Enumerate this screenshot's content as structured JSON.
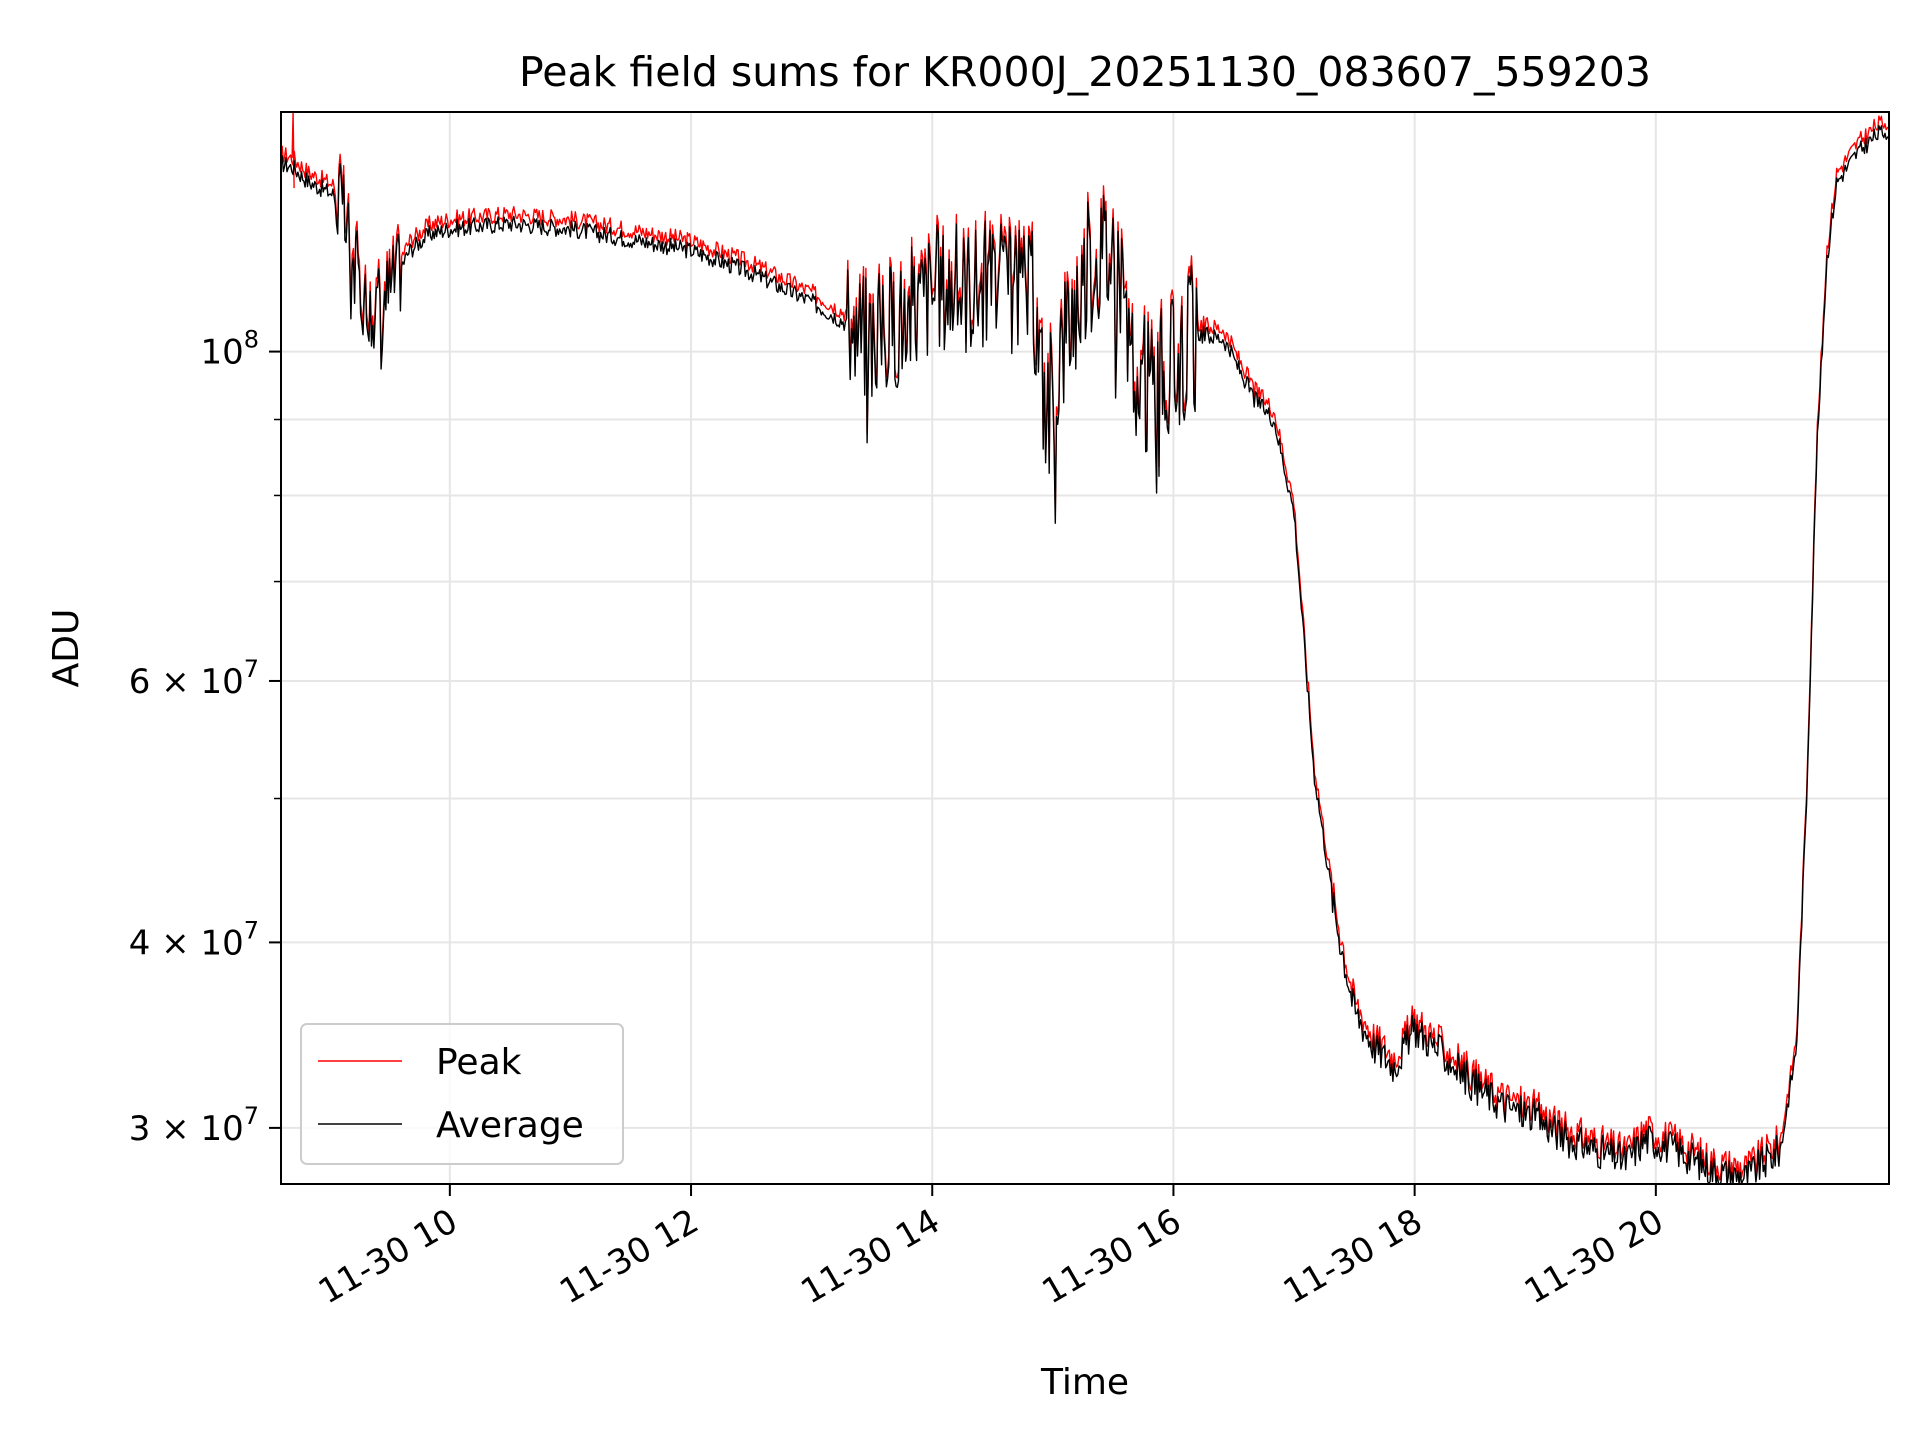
{
  "chart_data": {
    "type": "line",
    "title": "Peak field sums for KR000J_20251130_083607_559203",
    "xlabel": "Time",
    "ylabel": "ADU",
    "yscale": "log",
    "xlim": [
      "2025-11-30 08:36",
      "2025-11-30 21:56"
    ],
    "ylim": [
      27500000,
      145000000
    ],
    "grid": true,
    "legend_position": "lower-left",
    "x_ticks": [
      {
        "value": "2025-11-30 10:00",
        "label": "11-30 10"
      },
      {
        "value": "2025-11-30 12:00",
        "label": "11-30 12"
      },
      {
        "value": "2025-11-30 14:00",
        "label": "11-30 14"
      },
      {
        "value": "2025-11-30 16:00",
        "label": "11-30 16"
      },
      {
        "value": "2025-11-30 18:00",
        "label": "11-30 18"
      },
      {
        "value": "2025-11-30 20:00",
        "label": "11-30 20"
      }
    ],
    "y_ticks": [
      {
        "value": 30000000,
        "label": "3 × 10",
        "exp": "7"
      },
      {
        "value": 40000000,
        "label": "4 × 10",
        "exp": "7"
      },
      {
        "value": 60000000,
        "label": "6 × 10",
        "exp": "7"
      },
      {
        "value": 100000000,
        "label": "10",
        "exp": "8"
      }
    ],
    "y_minor_ticks": [
      50000000,
      70000000,
      80000000,
      90000000
    ],
    "series": [
      {
        "name": "Peak",
        "color": "#ff0000",
        "spike": {
          "x": "2025-11-30 08:42",
          "y": 145000000
        },
        "offset_factor": 1.015
      },
      {
        "name": "Average",
        "color": "#000000",
        "x": [
          "2025-11-30 08:36",
          "2025-11-30 08:42",
          "2025-11-30 08:50",
          "2025-11-30 09:05",
          "2025-11-30 09:12",
          "2025-11-30 09:20",
          "2025-11-30 09:30",
          "2025-11-30 09:40",
          "2025-11-30 09:50",
          "2025-11-30 10:00",
          "2025-11-30 10:30",
          "2025-11-30 11:00",
          "2025-11-30 11:30",
          "2025-11-30 12:00",
          "2025-11-30 12:30",
          "2025-11-30 13:00",
          "2025-11-30 13:30",
          "2025-11-30 13:45",
          "2025-11-30 14:00",
          "2025-11-30 14:30",
          "2025-11-30 14:50",
          "2025-11-30 14:57",
          "2025-11-30 15:05",
          "2025-11-30 15:20",
          "2025-11-30 15:30",
          "2025-11-30 15:35",
          "2025-11-30 15:40",
          "2025-11-30 15:50",
          "2025-11-30 16:00",
          "2025-11-30 16:10",
          "2025-11-30 16:25",
          "2025-11-30 16:40",
          "2025-11-30 16:50",
          "2025-11-30 17:00",
          "2025-11-30 17:10",
          "2025-11-30 17:20",
          "2025-11-30 17:30",
          "2025-11-30 17:40",
          "2025-11-30 17:50",
          "2025-11-30 18:00",
          "2025-11-30 18:15",
          "2025-11-30 18:30",
          "2025-11-30 18:45",
          "2025-11-30 19:00",
          "2025-11-30 19:15",
          "2025-11-30 19:30",
          "2025-11-30 19:45",
          "2025-11-30 19:55",
          "2025-11-30 20:10",
          "2025-11-30 20:30",
          "2025-11-30 20:45",
          "2025-11-30 20:55",
          "2025-11-30 21:02",
          "2025-11-30 21:10",
          "2025-11-30 21:15",
          "2025-11-30 21:20",
          "2025-11-30 21:25",
          "2025-11-30 21:30",
          "2025-11-30 21:40",
          "2025-11-30 21:50",
          "2025-11-30 21:56"
        ],
        "y": [
          134000000,
          133000000,
          130000000,
          127000000,
          115000000,
          106000000,
          110000000,
          117000000,
          120000000,
          121000000,
          122000000,
          121000000,
          119000000,
          117000000,
          113000000,
          108000000,
          102000000,
          105000000,
          110000000,
          111000000,
          109000000,
          90000000,
          102000000,
          116000000,
          117000000,
          112000000,
          94000000,
          95000000,
          97000000,
          103000000,
          102000000,
          93000000,
          90000000,
          78000000,
          52000000,
          42000000,
          36000000,
          34000000,
          33000000,
          35000000,
          33500000,
          32000000,
          31000000,
          30500000,
          29500000,
          29000000,
          28500000,
          29500000,
          29000000,
          28000000,
          27800000,
          28500000,
          29000000,
          34000000,
          50000000,
          85000000,
          115000000,
          130000000,
          136000000,
          140000000,
          141000000
        ]
      }
    ]
  }
}
